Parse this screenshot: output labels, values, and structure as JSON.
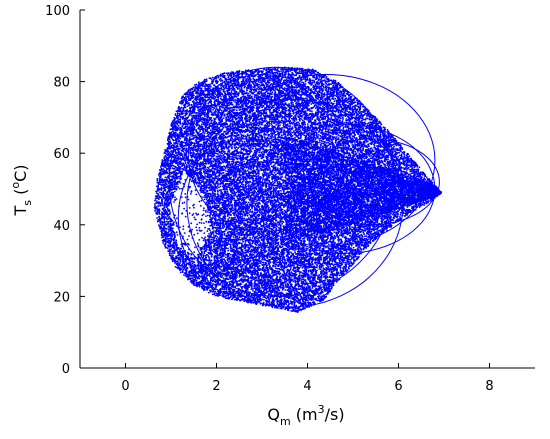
{
  "chart_data": {
    "type": "scatter",
    "color": "#0000FF",
    "xlim": [
      -1,
      9
    ],
    "ylim": [
      0,
      100
    ],
    "x_ticks": [
      0,
      2,
      4,
      6,
      8
    ],
    "y_ticks": [
      0,
      20,
      40,
      60,
      80,
      100
    ],
    "x_tick_labels": [
      "0",
      "2",
      "4",
      "6",
      "8"
    ],
    "y_tick_labels": [
      "0",
      "20",
      "40",
      "60",
      "80",
      "100"
    ],
    "xlabel": {
      "main": "Q",
      "sub": "m",
      "unit_open": " (m",
      "unit_sup": "3",
      "unit_close": "/s)"
    },
    "ylabel": {
      "main": "T",
      "sub": "s",
      "unit_open": " (",
      "unit_sup": "o",
      "unit_close": "C)"
    },
    "grid": false,
    "legend": "none",
    "envelope": [
      [
        0.63,
        45
      ],
      [
        0.7,
        53
      ],
      [
        0.85,
        60
      ],
      [
        1.0,
        68
      ],
      [
        1.25,
        76
      ],
      [
        1.6,
        80
      ],
      [
        2.2,
        82.5
      ],
      [
        2.8,
        83.5
      ],
      [
        3.5,
        84
      ],
      [
        4.1,
        83.5
      ],
      [
        4.6,
        80.5
      ],
      [
        5.2,
        74
      ],
      [
        5.8,
        66
      ],
      [
        6.4,
        57
      ],
      [
        6.8,
        51
      ],
      [
        6.95,
        49
      ],
      [
        6.7,
        46.5
      ],
      [
        6.1,
        42
      ],
      [
        5.4,
        35
      ],
      [
        4.8,
        26
      ],
      [
        4.35,
        19
      ],
      [
        3.8,
        15.5
      ],
      [
        3.2,
        17
      ],
      [
        2.6,
        18.5
      ],
      [
        2.0,
        20
      ],
      [
        1.5,
        23
      ],
      [
        1.1,
        28
      ],
      [
        0.82,
        35
      ]
    ],
    "hole": [
      [
        1.3,
        55
      ],
      [
        1.75,
        48
      ],
      [
        1.9,
        39
      ],
      [
        1.55,
        31
      ],
      [
        1.15,
        34
      ],
      [
        0.95,
        45
      ]
    ],
    "hole_density": 0.12,
    "point_count": 26000,
    "loops": [
      {
        "cx": 3.3,
        "cy": 52,
        "rx": 2.6,
        "ry": 32
      },
      {
        "cx": 4.4,
        "cy": 58,
        "rx": 2.4,
        "ry": 24
      },
      {
        "cx": 3.6,
        "cy": 46,
        "rx": 2.5,
        "ry": 29
      },
      {
        "cx": 4.8,
        "cy": 50,
        "rx": 2.0,
        "ry": 18
      },
      {
        "cx": 3.0,
        "cy": 60,
        "rx": 1.8,
        "ry": 22
      },
      {
        "cx": 5.4,
        "cy": 52,
        "rx": 1.5,
        "ry": 12
      },
      {
        "cx": 2.6,
        "cy": 42,
        "rx": 1.6,
        "ry": 22
      }
    ],
    "cusp": [
      6.95,
      49.5
    ]
  }
}
